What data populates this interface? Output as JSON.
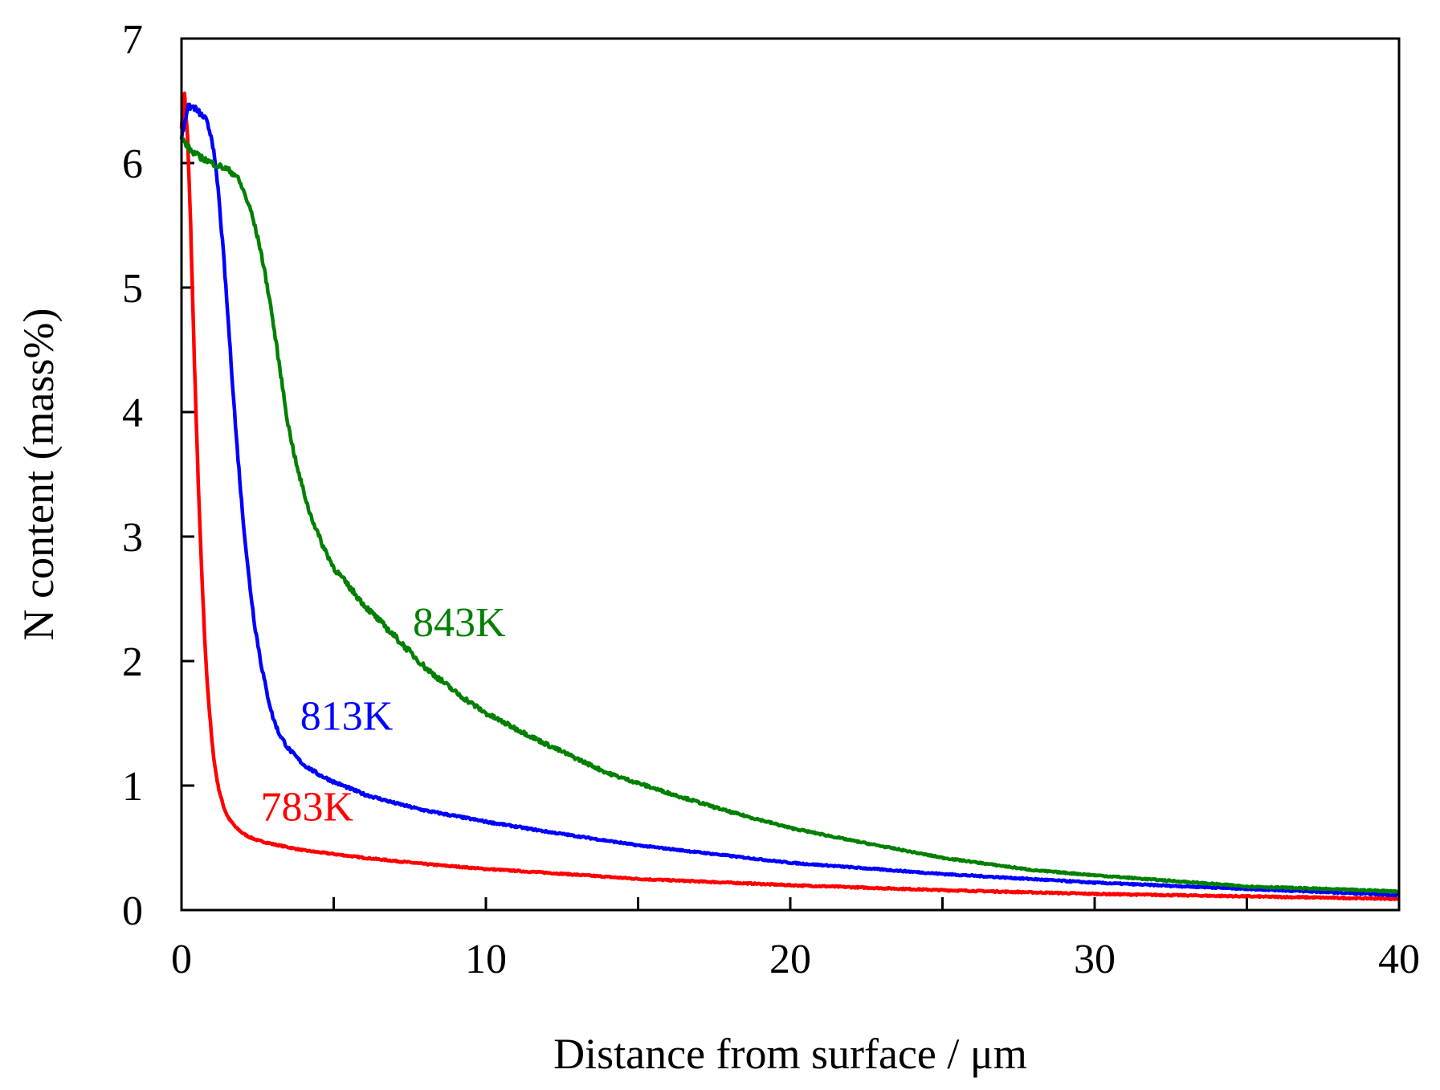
{
  "chart_data": {
    "type": "line",
    "title": "",
    "xlabel": "Distance from surface / μm",
    "ylabel": "N content (mass%)",
    "xlim": [
      0,
      40
    ],
    "ylim": [
      0,
      7
    ],
    "xticks": [
      0,
      10,
      20,
      30,
      40
    ],
    "yticks": [
      0,
      1,
      2,
      3,
      4,
      5,
      6,
      7
    ],
    "grid": false,
    "series": [
      {
        "name": "783K",
        "color": "#ff0000",
        "label_at": [
          2.6,
          0.72
        ],
        "x": [
          0,
          0.1,
          0.2,
          0.3,
          0.4,
          0.5,
          0.6,
          0.7,
          0.8,
          0.9,
          1.0,
          1.1,
          1.2,
          1.3,
          1.4,
          1.5,
          1.6,
          1.8,
          2.0,
          2.2,
          2.5,
          3.0,
          4.0,
          5.0,
          6.0,
          8.0,
          10.0,
          12.0,
          15.0,
          20.0,
          25.0,
          30.0,
          35.0,
          40.0
        ],
        "y": [
          6.3,
          6.55,
          6.2,
          5.5,
          4.6,
          3.8,
          3.1,
          2.5,
          2.0,
          1.65,
          1.35,
          1.15,
          1.0,
          0.9,
          0.82,
          0.76,
          0.72,
          0.66,
          0.62,
          0.59,
          0.56,
          0.53,
          0.48,
          0.45,
          0.42,
          0.37,
          0.33,
          0.3,
          0.25,
          0.2,
          0.16,
          0.13,
          0.11,
          0.09
        ]
      },
      {
        "name": "813K",
        "color": "#0000ff",
        "label_at": [
          3.9,
          1.45
        ],
        "x": [
          0,
          0.2,
          0.4,
          0.6,
          0.8,
          1.0,
          1.2,
          1.4,
          1.6,
          1.8,
          2.0,
          2.2,
          2.4,
          2.6,
          2.8,
          3.0,
          3.2,
          3.5,
          4.0,
          4.5,
          5.0,
          6.0,
          7.0,
          8.0,
          10.0,
          12.0,
          15.0,
          20.0,
          25.0,
          30.0,
          35.0,
          40.0
        ],
        "y": [
          6.2,
          6.45,
          6.45,
          6.4,
          6.35,
          6.2,
          5.8,
          5.2,
          4.5,
          3.8,
          3.2,
          2.7,
          2.3,
          2.0,
          1.75,
          1.55,
          1.42,
          1.3,
          1.17,
          1.09,
          1.03,
          0.93,
          0.86,
          0.8,
          0.71,
          0.63,
          0.52,
          0.38,
          0.29,
          0.22,
          0.17,
          0.12
        ]
      },
      {
        "name": "843K",
        "color": "#008000",
        "label_at": [
          7.6,
          2.2
        ],
        "x": [
          0,
          0.3,
          0.6,
          1.0,
          1.5,
          1.8,
          2.0,
          2.3,
          2.6,
          2.9,
          3.2,
          3.5,
          3.8,
          4.2,
          4.6,
          5.0,
          5.5,
          6.0,
          7.0,
          8.0,
          9.0,
          10.0,
          12.0,
          14.0,
          16.0,
          18.0,
          20.0,
          22.0,
          25.0,
          28.0,
          30.0,
          35.0,
          40.0
        ],
        "y": [
          6.2,
          6.1,
          6.05,
          6.0,
          5.95,
          5.9,
          5.8,
          5.6,
          5.3,
          4.9,
          4.4,
          3.9,
          3.55,
          3.2,
          2.95,
          2.75,
          2.6,
          2.45,
          2.2,
          1.95,
          1.75,
          1.58,
          1.33,
          1.1,
          0.94,
          0.79,
          0.66,
          0.56,
          0.42,
          0.32,
          0.28,
          0.19,
          0.15
        ]
      }
    ]
  }
}
